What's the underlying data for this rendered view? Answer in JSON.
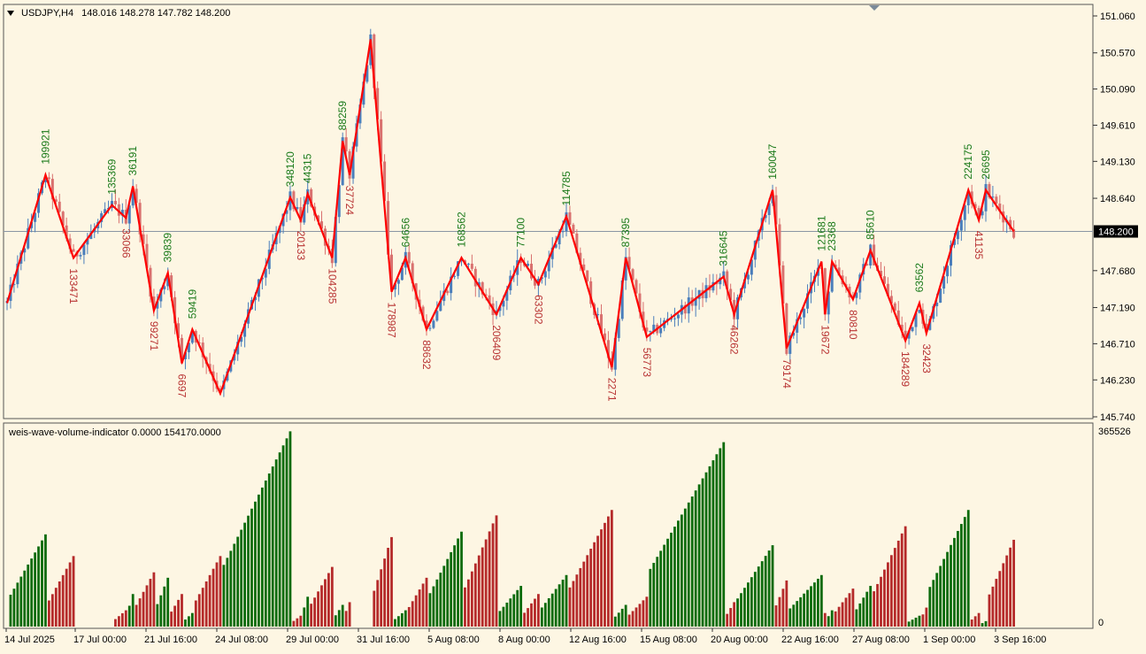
{
  "header": {
    "symbol": "USDJPY,H4",
    "ohlc": "148.016 148.278 147.782 148.200",
    "indicator_title": "weis-wave-volume-indicator 0.0000 154170.0000"
  },
  "colors": {
    "background": "#fdf6e3",
    "bull_candle": "#4a7ebb",
    "bear_candle": "#d9716f",
    "zigzag": "#ff0000",
    "up_label": "#1a7a1a",
    "down_label": "#b83232",
    "up_volume": "#0b6b0b",
    "down_volume": "#b52a2a"
  },
  "chart_data": [
    {
      "type": "candlestick",
      "symbol": "USDJPY",
      "timeframe": "H4",
      "ylim": [
        145.5,
        151.3
      ],
      "y_ticks": [
        "151.060",
        "150.570",
        "150.090",
        "149.610",
        "149.130",
        "148.640",
        "148.200",
        "147.680",
        "147.190",
        "146.710",
        "146.230",
        "145.740"
      ],
      "current_price": "148.200",
      "x_ticks": [
        "14 Jul 2025",
        "17 Jul 00:00",
        "21 Jul 16:00",
        "24 Jul 08:00",
        "29 Jul 00:00",
        "31 Jul 16:00",
        "5 Aug 08:00",
        "8 Aug 00:00",
        "12 Aug 16:00",
        "15 Aug 08:00",
        "20 Aug 00:00",
        "22 Aug 16:00",
        "27 Aug 08:00",
        "1 Sep 00:00",
        "3 Sep 16:00"
      ],
      "zigzag": [
        [
          0,
          147.25
        ],
        [
          11,
          148.95
        ],
        [
          19,
          147.85
        ],
        [
          30,
          148.55
        ],
        [
          34,
          148.38
        ],
        [
          36,
          148.8
        ],
        [
          42,
          147.15
        ],
        [
          46,
          147.65
        ],
        [
          50,
          146.45
        ],
        [
          53,
          146.9
        ],
        [
          61,
          146.05
        ],
        [
          81,
          148.65
        ],
        [
          84,
          148.35
        ],
        [
          86,
          148.7
        ],
        [
          93,
          147.85
        ],
        [
          96,
          149.4
        ],
        [
          98,
          148.95
        ],
        [
          104,
          150.75
        ],
        [
          110,
          147.4
        ],
        [
          114,
          147.85
        ],
        [
          120,
          146.9
        ],
        [
          130,
          147.85
        ],
        [
          140,
          147.1
        ],
        [
          147,
          147.85
        ],
        [
          152,
          147.5
        ],
        [
          160,
          148.4
        ],
        [
          173,
          146.4
        ],
        [
          177,
          147.85
        ],
        [
          183,
          146.8
        ],
        [
          205,
          147.6
        ],
        [
          208,
          147.1
        ],
        [
          219,
          148.75
        ],
        [
          223,
          146.65
        ],
        [
          233,
          147.8
        ],
        [
          234,
          147.1
        ],
        [
          236,
          147.8
        ],
        [
          242,
          147.3
        ],
        [
          247,
          147.95
        ],
        [
          257,
          146.75
        ],
        [
          261,
          147.25
        ],
        [
          263,
          146.85
        ],
        [
          275,
          148.75
        ],
        [
          278,
          148.35
        ],
        [
          280,
          148.75
        ],
        [
          288,
          148.2
        ]
      ],
      "up_wave_labels": [
        {
          "text": "199921",
          "bar": 11,
          "price": 148.95
        },
        {
          "text": "135369",
          "bar": 30,
          "price": 148.55
        },
        {
          "text": "36191",
          "bar": 36,
          "price": 148.8
        },
        {
          "text": "39839",
          "bar": 46,
          "price": 147.65
        },
        {
          "text": "59419",
          "bar": 53,
          "price": 146.9
        },
        {
          "text": "348120",
          "bar": 81,
          "price": 148.65
        },
        {
          "text": "44315",
          "bar": 86,
          "price": 148.7
        },
        {
          "text": "88259",
          "bar": 96,
          "price": 149.4
        },
        {
          "text": "64656",
          "bar": 114,
          "price": 147.85
        },
        {
          "text": "168562",
          "bar": 130,
          "price": 147.85
        },
        {
          "text": "77100",
          "bar": 147,
          "price": 147.85
        },
        {
          "text": "114785",
          "bar": 160,
          "price": 148.4
        },
        {
          "text": "87395",
          "bar": 177,
          "price": 147.85
        },
        {
          "text": "316645",
          "bar": 205,
          "price": 147.6
        },
        {
          "text": "160047",
          "bar": 219,
          "price": 148.75
        },
        {
          "text": "121681",
          "bar": 233,
          "price": 147.8
        },
        {
          "text": "23368",
          "bar": 236,
          "price": 147.8
        },
        {
          "text": "85610",
          "bar": 247,
          "price": 147.95
        },
        {
          "text": "63562",
          "bar": 261,
          "price": 147.25
        },
        {
          "text": "224175",
          "bar": 275,
          "price": 148.75
        },
        {
          "text": "26695",
          "bar": 280,
          "price": 148.75
        }
      ],
      "down_wave_labels": [
        {
          "text": "133471",
          "bar": 19,
          "price": 147.85
        },
        {
          "text": "33066",
          "bar": 34,
          "price": 148.38
        },
        {
          "text": "99271",
          "bar": 42,
          "price": 147.15
        },
        {
          "text": "6697",
          "bar": 50,
          "price": 146.45
        },
        {
          "text": "20133",
          "bar": 84,
          "price": 148.35
        },
        {
          "text": "104285",
          "bar": 93,
          "price": 147.85
        },
        {
          "text": "37724",
          "bar": 98,
          "price": 148.95
        },
        {
          "text": "178987",
          "bar": 110,
          "price": 147.4
        },
        {
          "text": "88632",
          "bar": 120,
          "price": 146.9
        },
        {
          "text": "206409",
          "bar": 140,
          "price": 147.1
        },
        {
          "text": "63302",
          "bar": 152,
          "price": 147.5
        },
        {
          "text": "2271",
          "bar": 173,
          "price": 146.4
        },
        {
          "text": "56773",
          "bar": 183,
          "price": 146.8
        },
        {
          "text": "46262",
          "bar": 208,
          "price": 147.1
        },
        {
          "text": "79174",
          "bar": 223,
          "price": 146.65
        },
        {
          "text": "19672",
          "bar": 234,
          "price": 147.1
        },
        {
          "text": "80810",
          "bar": 242,
          "price": 147.3
        },
        {
          "text": "184289",
          "bar": 257,
          "price": 146.75
        },
        {
          "text": "32423",
          "bar": 263,
          "price": 146.85
        },
        {
          "text": "41135",
          "bar": 278,
          "price": 148.35
        }
      ]
    },
    {
      "type": "bar",
      "title": "weis-wave-volume-indicator",
      "ylim": [
        0,
        365526
      ],
      "y_ticks": [
        "365526",
        "0"
      ],
      "series": [
        {
          "name": "up",
          "waves": [
            [
              0,
              11,
              170000
            ],
            [
              34,
              36,
              60000
            ],
            [
              42,
              46,
              90000
            ],
            [
              50,
              53,
              25000
            ],
            [
              61,
              81,
              360000
            ],
            [
              84,
              86,
              55000
            ],
            [
              93,
              96,
              40000
            ],
            [
              110,
              114,
              30000
            ],
            [
              120,
              130,
              175000
            ],
            [
              140,
              147,
              75000
            ],
            [
              152,
              160,
              95000
            ],
            [
              173,
              177,
              40000
            ],
            [
              183,
              205,
              340000
            ],
            [
              208,
              219,
              150000
            ],
            [
              223,
              233,
              95000
            ],
            [
              234,
              236,
              30000
            ],
            [
              242,
              247,
              75000
            ],
            [
              257,
              261,
              20000
            ],
            [
              263,
              275,
              215000
            ],
            [
              278,
              280,
              10000
            ]
          ]
        },
        {
          "name": "down",
          "waves": [
            [
              11,
              19,
              130000
            ],
            [
              30,
              34,
              30000
            ],
            [
              36,
              42,
              100000
            ],
            [
              46,
              50,
              60000
            ],
            [
              53,
              61,
              130000
            ],
            [
              81,
              84,
              20000
            ],
            [
              86,
              93,
              110000
            ],
            [
              96,
              98,
              45000
            ],
            [
              104,
              110,
              165000
            ],
            [
              114,
              120,
              90000
            ],
            [
              130,
              140,
              205000
            ],
            [
              147,
              152,
              60000
            ],
            [
              160,
              173,
              215000
            ],
            [
              177,
              183,
              55000
            ],
            [
              205,
              208,
              45000
            ],
            [
              219,
              223,
              85000
            ],
            [
              233,
              234,
              25000
            ],
            [
              236,
              242,
              70000
            ],
            [
              247,
              257,
              185000
            ],
            [
              261,
              263,
              35000
            ],
            [
              275,
              278,
              25000
            ],
            [
              280,
              288,
              160000
            ]
          ]
        }
      ]
    }
  ]
}
